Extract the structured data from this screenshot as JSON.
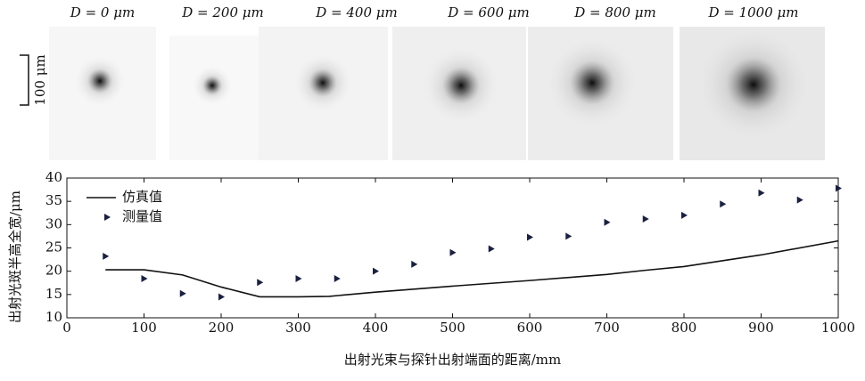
{
  "panel_labels": [
    "D = 0 μm",
    "D = 200 μm",
    "D = 400 μm",
    "D = 600 μm",
    "D = 800 μm",
    "D = 1000 μm"
  ],
  "scale_bar": "100 μm",
  "chart_data": {
    "type": "line",
    "xlabel": "出射光束与探针出射端面的距离/mm",
    "ylabel": "出射光斑半高全宽/μm",
    "xlim": [
      0,
      1000
    ],
    "xticks": [
      0,
      100,
      200,
      300,
      400,
      500,
      600,
      700,
      800,
      900,
      1000
    ],
    "ylim": [
      10,
      40
    ],
    "yticks": [
      10,
      15,
      20,
      25,
      30,
      35,
      40
    ],
    "legend": "upper-left",
    "series": [
      {
        "name": "仿真值",
        "kind": "line",
        "color": "#111111",
        "x": [
          50,
          100,
          150,
          200,
          250,
          300,
          340,
          400,
          500,
          600,
          700,
          750,
          800,
          900,
          1000
        ],
        "values": [
          20.3,
          20.3,
          19.2,
          16.6,
          14.5,
          14.5,
          14.6,
          15.5,
          16.8,
          18,
          19.3,
          20.2,
          21,
          23.5,
          26.5
        ]
      },
      {
        "name": "测量值",
        "kind": "scatter",
        "color": "#1a2040",
        "x": [
          50,
          100,
          150,
          200,
          250,
          300,
          350,
          400,
          450,
          500,
          550,
          600,
          650,
          700,
          750,
          800,
          850,
          900,
          950,
          1000
        ],
        "values": [
          23.2,
          18.4,
          15.2,
          14.5,
          17.6,
          18.4,
          18.4,
          20,
          21.5,
          24,
          24.8,
          27.3,
          27.5,
          30.5,
          31.2,
          32,
          34.4,
          36.8,
          35.3,
          37.8
        ]
      }
    ]
  }
}
